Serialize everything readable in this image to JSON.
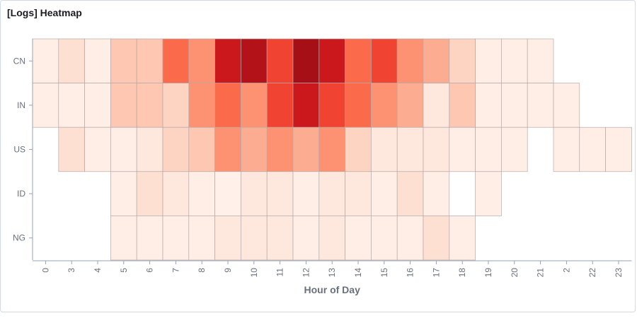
{
  "panel": {
    "title": "[Logs] Heatmap"
  },
  "chart_data": {
    "type": "heatmap",
    "title": "[Logs] Heatmap",
    "xlabel": "Hour of Day",
    "ylabel": "",
    "x_categories": [
      "0",
      "3",
      "4",
      "5",
      "6",
      "7",
      "8",
      "9",
      "10",
      "11",
      "12",
      "13",
      "14",
      "15",
      "16",
      "17",
      "18",
      "19",
      "20",
      "21",
      "2",
      "22",
      "23"
    ],
    "y_categories": [
      "CN",
      "IN",
      "US",
      "ID",
      "NG"
    ],
    "color_scale": {
      "low": "#fff5f0",
      "high": "#a50f15",
      "scheme": "Reds"
    },
    "values": [
      [
        0.05,
        0.15,
        0.05,
        0.25,
        0.25,
        0.6,
        0.45,
        0.85,
        0.95,
        0.7,
        1.0,
        0.85,
        0.6,
        0.7,
        0.45,
        0.35,
        0.2,
        0.05,
        0.05,
        0.05,
        null,
        null,
        null
      ],
      [
        0.05,
        0.05,
        0.05,
        0.25,
        0.25,
        0.2,
        0.45,
        0.6,
        0.45,
        0.7,
        0.85,
        0.7,
        0.6,
        0.45,
        0.35,
        0.1,
        0.25,
        0.05,
        0.05,
        0.05,
        0.05,
        null,
        null
      ],
      [
        null,
        0.15,
        0.05,
        0.05,
        0.1,
        0.2,
        0.25,
        0.45,
        0.35,
        0.45,
        0.35,
        0.45,
        0.2,
        0.1,
        0.1,
        0.1,
        0.05,
        0.05,
        0.05,
        null,
        0.05,
        0.05,
        0.05
      ],
      [
        null,
        null,
        null,
        0.05,
        0.15,
        0.1,
        0.05,
        0.03,
        0.1,
        0.1,
        0.05,
        0.1,
        0.1,
        0.05,
        0.15,
        0.05,
        null,
        0.05,
        null,
        null,
        null,
        null,
        null
      ],
      [
        null,
        null,
        null,
        0.05,
        0.05,
        0.05,
        0.05,
        0.1,
        0.1,
        0.1,
        0.05,
        0.1,
        0.05,
        0.05,
        0.05,
        0.15,
        0.05,
        null,
        null,
        null,
        null,
        null,
        null
      ]
    ],
    "grid": false,
    "legend": "none"
  }
}
